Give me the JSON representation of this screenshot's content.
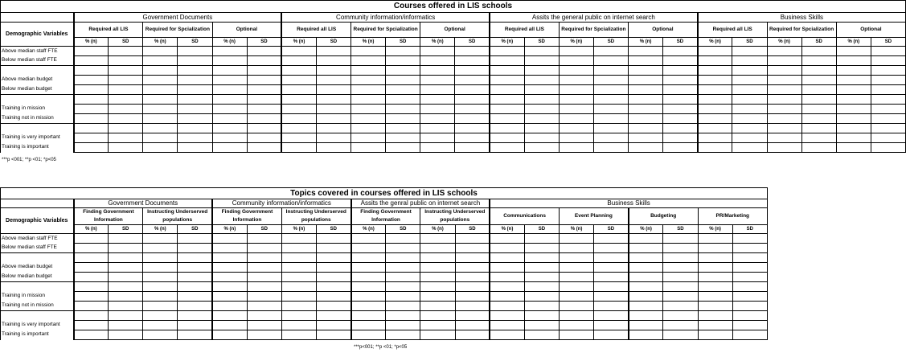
{
  "table1": {
    "title": "Courses offered in LIS schools",
    "row_header": "Demographic Variables",
    "groups": [
      "Government Documents",
      "Community information/informatics",
      "Assits the general public on internet search",
      "Business Skills"
    ],
    "subgroups": [
      "Required all LIS",
      "Required for Spcialization",
      "Optional"
    ],
    "col_headers": [
      "% (n)",
      "SD"
    ],
    "rows": [
      "Above median staff FTE",
      "Below median staff FTE",
      "",
      "Above median budget",
      "Below median budget",
      "",
      "Training in mission",
      "Training not in mission",
      "",
      "Training is very important",
      "Training is important"
    ],
    "footnote": "***p <001; **p <01; *p<05"
  },
  "table2": {
    "title": "Topics covered in courses offered in LIS schools",
    "row_header": "Demographic Variables",
    "groups": [
      {
        "label": "Government Documents",
        "subs": [
          "Finding Government Information",
          "Instructing Underserved populations"
        ]
      },
      {
        "label": "Community information/informatics",
        "subs": [
          "Finding Government Information",
          "Instructing Underserved populations"
        ]
      },
      {
        "label": "Assits the genral public on internet search",
        "subs": [
          "Finding Government Information",
          "Instructing Underserved populations"
        ]
      },
      {
        "label": "Business Skills",
        "subs": [
          "Communications",
          "Event Planning",
          "Budgeting",
          "PR/Marketing"
        ]
      }
    ],
    "col_headers": [
      "% (n)",
      "SD"
    ],
    "rows": [
      "Above median staff FTE",
      "Below median staff FTE",
      "",
      "Above median budget",
      "Below median budget",
      "",
      "Training in mission",
      "Training not in mission",
      "",
      "Training is very important",
      "Training is important"
    ],
    "footnote": "***p<001; **p <01; *p<05"
  }
}
